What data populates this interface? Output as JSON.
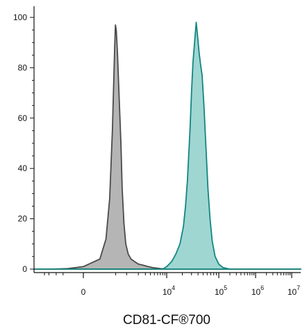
{
  "chart_data": {
    "type": "area",
    "title": "",
    "xlabel": "CD81-CF®700",
    "ylabel": "",
    "ylim": [
      0,
      100
    ],
    "x_scale": "biexponential",
    "grid": false,
    "legend": "none",
    "y_ticks": [
      "0",
      "20",
      "40",
      "60",
      "80",
      "100"
    ],
    "x_ticks": [
      {
        "base": "0",
        "exp": ""
      },
      {
        "base": "10",
        "exp": "4"
      },
      {
        "base": "10",
        "exp": "5"
      },
      {
        "base": "10",
        "exp": "6"
      },
      {
        "base": "10",
        "exp": "7"
      }
    ],
    "series": [
      {
        "color": "#a8a8a8",
        "stroke": "#4a4a4a",
        "points": [
          [
            -3000,
            0
          ],
          [
            -1500,
            0
          ],
          [
            -300,
            0.2
          ],
          [
            0,
            1
          ],
          [
            150,
            4
          ],
          [
            250,
            12
          ],
          [
            330,
            28
          ],
          [
            400,
            55
          ],
          [
            440,
            75
          ],
          [
            470,
            90
          ],
          [
            490,
            97
          ],
          [
            520,
            95
          ],
          [
            560,
            86
          ],
          [
            620,
            70
          ],
          [
            700,
            50
          ],
          [
            760,
            32
          ],
          [
            850,
            18
          ],
          [
            950,
            10
          ],
          [
            1100,
            6
          ],
          [
            1300,
            4
          ],
          [
            1600,
            3
          ],
          [
            2000,
            2
          ],
          [
            2600,
            1.6
          ],
          [
            3500,
            1
          ],
          [
            5000,
            0.5
          ],
          [
            7000,
            0.2
          ],
          [
            10000,
            0
          ]
        ]
      },
      {
        "color": "#8ecfc9",
        "stroke": "#128680",
        "points": [
          [
            8000,
            0
          ],
          [
            10000,
            1
          ],
          [
            12500,
            3
          ],
          [
            15000,
            6
          ],
          [
            18000,
            10
          ],
          [
            21000,
            17
          ],
          [
            23000,
            25
          ],
          [
            25000,
            35
          ],
          [
            28000,
            55
          ],
          [
            30000,
            70
          ],
          [
            32000,
            82
          ],
          [
            35000,
            92
          ],
          [
            37000,
            98
          ],
          [
            39000,
            93
          ],
          [
            42000,
            86
          ],
          [
            45000,
            81
          ],
          [
            48000,
            77
          ],
          [
            52000,
            65
          ],
          [
            57000,
            48
          ],
          [
            62000,
            32
          ],
          [
            68000,
            20
          ],
          [
            75000,
            11
          ],
          [
            85000,
            5
          ],
          [
            100000,
            2
          ],
          [
            130000,
            0.6
          ],
          [
            200000,
            0
          ],
          [
            10000000,
            0
          ]
        ]
      }
    ]
  }
}
